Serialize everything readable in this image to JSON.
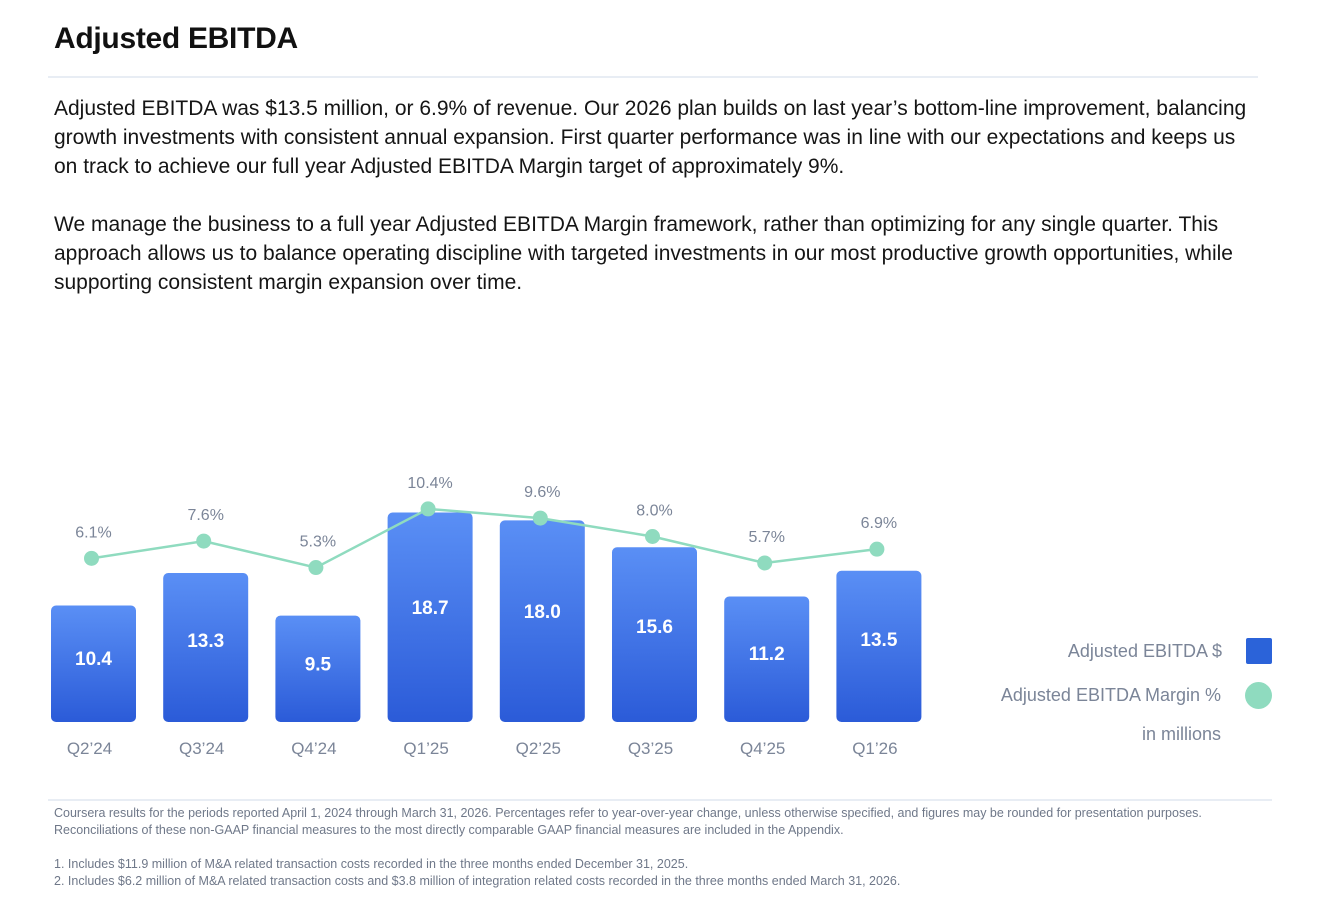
{
  "header": {
    "title": "Adjusted EBITDA"
  },
  "body": {
    "paragraph_1": "Adjusted EBITDA was $13.5 million, or 6.9% of revenue. Our 2026 plan builds on last year’s bottom-line improvement, balancing growth investments with consistent annual expansion. First quarter performance was in line with our expectations and keeps us on track to achieve our full year Adjusted EBITDA Margin target of approximately 9%.",
    "paragraph_2": "We manage the business to a full year Adjusted EBITDA Margin framework, rather than optimizing for any single quarter. This approach allows us to balance operating discipline with targeted investments in our most productive growth opportunities, while supporting consistent margin expansion over time."
  },
  "legend": {
    "bar_label": "Adjusted EBITDA $",
    "line_label": "Adjusted EBITDA Margin %",
    "unit_note": "in millions"
  },
  "colors": {
    "bar_top": "#5a8ff5",
    "bar_bottom": "#2b5bd8",
    "line": "#8fdbbf",
    "label_gray": "#7b8598",
    "bar_text": "#ffffff"
  },
  "chart_data": {
    "type": "bar+line",
    "categories": [
      "Q2’24",
      "Q3’24",
      "Q4’24",
      "Q1’25",
      "Q2’25",
      "Q3’25",
      "Q4’25",
      "Q1’26"
    ],
    "series": [
      {
        "name": "Adjusted EBITDA $",
        "kind": "bar",
        "unit": "millions",
        "values": [
          10.4,
          13.3,
          9.5,
          18.7,
          18.0,
          15.6,
          11.2,
          13.5
        ],
        "labels": [
          "10.4",
          "13.3",
          "9.5",
          "18.7",
          "18.0",
          "15.6",
          "11.2",
          "13.5"
        ]
      },
      {
        "name": "Adjusted EBITDA Margin %",
        "kind": "line",
        "unit": "percent",
        "values": [
          6.1,
          7.6,
          5.3,
          10.4,
          9.6,
          8.0,
          5.7,
          6.9
        ],
        "labels": [
          "6.1%",
          "7.6%",
          "5.3%",
          "10.4%",
          "9.6%",
          "8.0%",
          "5.7%",
          "6.9%"
        ]
      }
    ],
    "bar_ylim": [
      0,
      20
    ],
    "line_ylim": [
      0,
      12
    ],
    "grid": false,
    "legend_position": "right"
  },
  "footnotes": {
    "intro": "Coursera results for the periods reported April 1, 2024 through March 31, 2026. Percentages refer to year-over-year change, unless otherwise specified, and figures may be rounded for presentation purposes. Reconciliations of these non-GAAP financial measures to the most directly comparable GAAP financial measures are included in the Appendix.",
    "note_1": "1. Includes $11.9 million of M&A related transaction costs recorded in the three months ended December 31, 2025.",
    "note_2": "2. Includes $6.2 million of M&A related transaction costs and $3.8 million of integration related costs recorded in the three months ended March 31, 2026."
  }
}
